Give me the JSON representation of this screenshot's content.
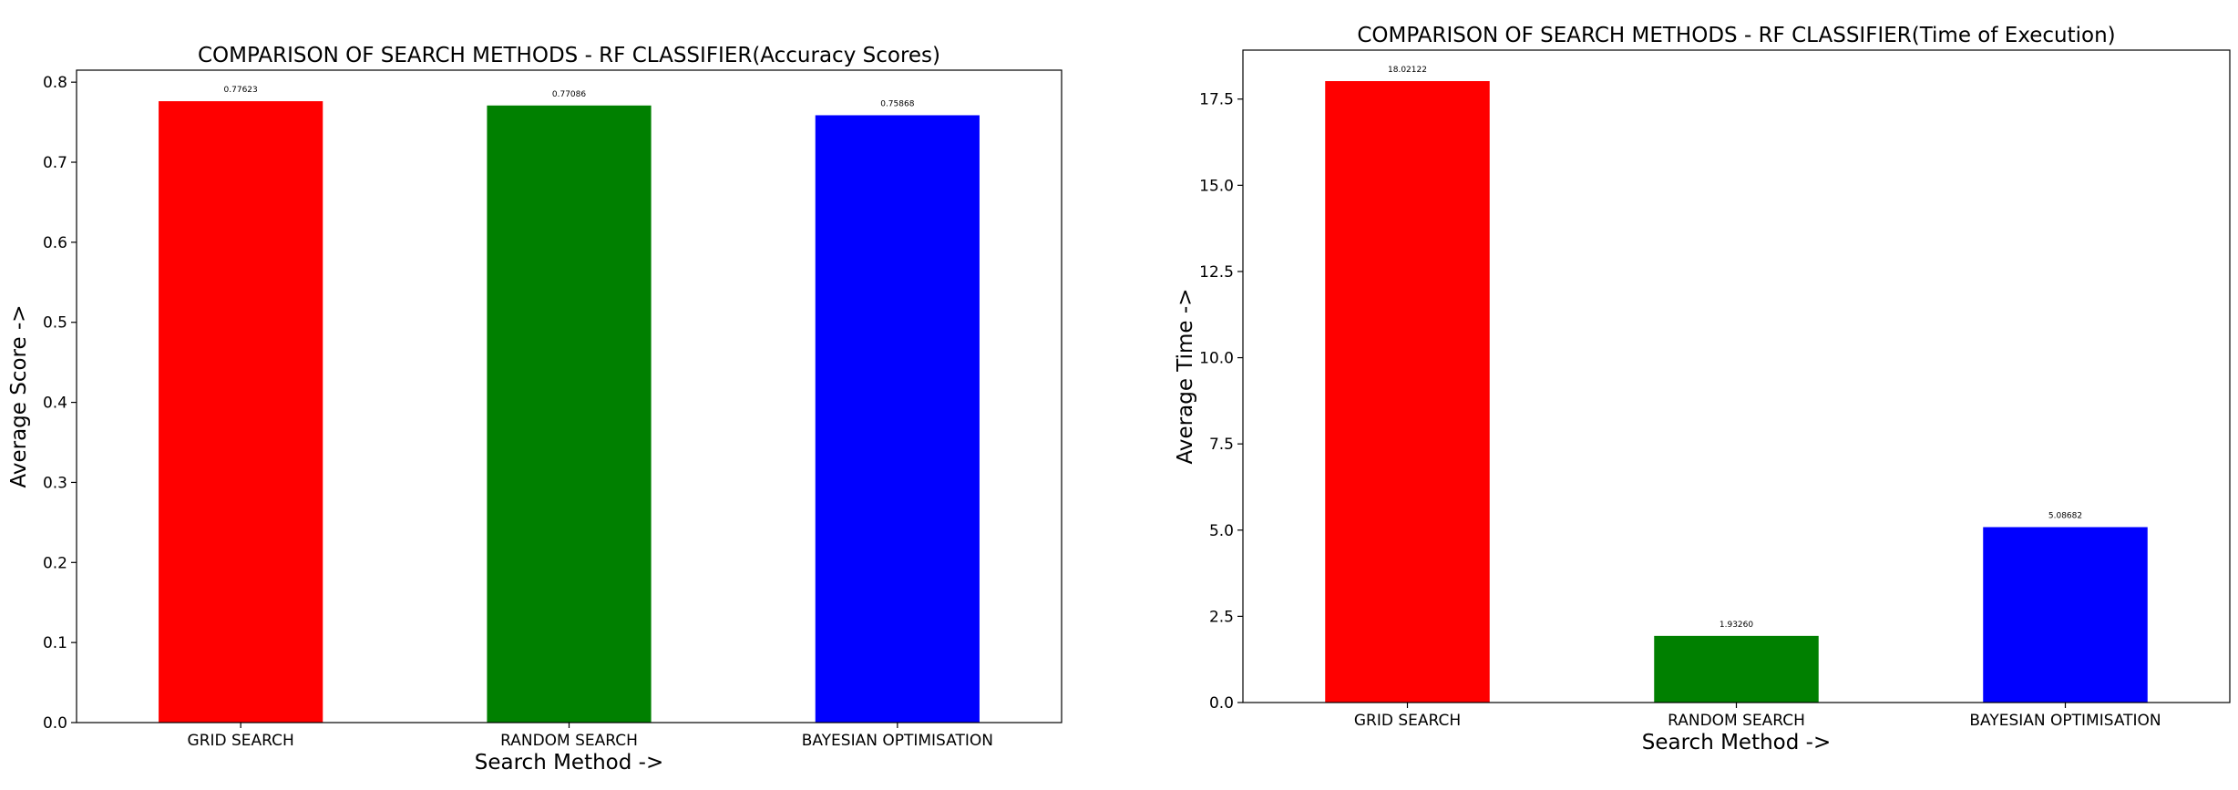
{
  "chart_data": [
    {
      "type": "bar",
      "title": "COMPARISON OF SEARCH METHODS - RF CLASSIFIER(Accuracy Scores)",
      "xlabel": "Search Method ->",
      "ylabel": "Average Score ->",
      "categories": [
        "GRID SEARCH",
        "RANDOM SEARCH",
        "BAYESIAN OPTIMISATION"
      ],
      "values": [
        0.77623,
        0.77086,
        0.75868
      ],
      "value_labels": [
        "0.77623",
        "0.77086",
        "0.75868"
      ],
      "colors": [
        "#ff0000",
        "#008000",
        "#0000ff"
      ],
      "ylim": [
        0,
        0.815
      ],
      "yticks": [
        0.0,
        0.1,
        0.2,
        0.3,
        0.4,
        0.5,
        0.6,
        0.7,
        0.8
      ],
      "ytick_labels": [
        "0.0",
        "0.1",
        "0.2",
        "0.3",
        "0.4",
        "0.5",
        "0.6",
        "0.7",
        "0.8"
      ],
      "grid": false,
      "legend": "none"
    },
    {
      "type": "bar",
      "title": "COMPARISON OF SEARCH METHODS - RF CLASSIFIER(Time of Execution)",
      "xlabel": "Search Method ->",
      "ylabel": "Average Time ->",
      "categories": [
        "GRID SEARCH",
        "RANDOM SEARCH",
        "BAYESIAN OPTIMISATION"
      ],
      "values": [
        18.02122,
        1.9326,
        5.08682
      ],
      "value_labels": [
        "18.02122",
        "1.93260",
        "5.08682"
      ],
      "colors": [
        "#ff0000",
        "#008000",
        "#0000ff"
      ],
      "ylim": [
        0,
        18.92
      ],
      "yticks": [
        0.0,
        2.5,
        5.0,
        7.5,
        10.0,
        12.5,
        15.0,
        17.5
      ],
      "ytick_labels": [
        "0.0",
        "2.5",
        "5.0",
        "7.5",
        "10.0",
        "12.5",
        "15.0",
        "17.5"
      ],
      "grid": false,
      "legend": "none"
    }
  ]
}
